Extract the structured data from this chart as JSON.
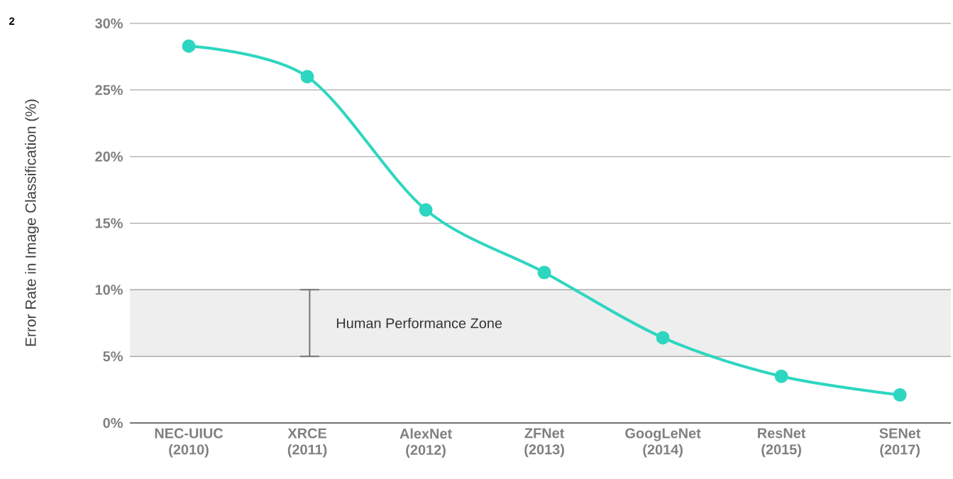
{
  "chart_data": {
    "type": "line",
    "ylabel": "Error Rate in Image Classification (%)",
    "categories": [
      "NEC-UIUC (2010)",
      "XRCE (2011)",
      "AlexNet (2012)",
      "ZFNet (2013)",
      "GoogLeNet (2014)",
      "ResNet (2015)",
      "SENet (2017)"
    ],
    "series": [
      {
        "color": "#2ed6c0",
        "values": [
          28.3,
          26.0,
          16.0,
          11.3,
          6.4,
          3.5,
          2.1
        ]
      }
    ],
    "ylim": [
      0,
      30
    ],
    "yticks": [
      {
        "value": 0,
        "label": "0%"
      },
      {
        "value": 5,
        "label": "5%"
      },
      {
        "value": 10,
        "label": "10%"
      },
      {
        "value": 15,
        "label": "15%"
      },
      {
        "value": 20,
        "label": "20%"
      },
      {
        "value": 25,
        "label": "25%"
      },
      {
        "value": 30,
        "label": "30%"
      }
    ],
    "bands": [
      {
        "axis": "y",
        "from": 5,
        "to": 10,
        "label": "Human Performance Zone",
        "color": "#eeeeee"
      }
    ],
    "annotations": [
      "2"
    ],
    "grid": "y",
    "marker": "circle",
    "line_style": "solid"
  }
}
